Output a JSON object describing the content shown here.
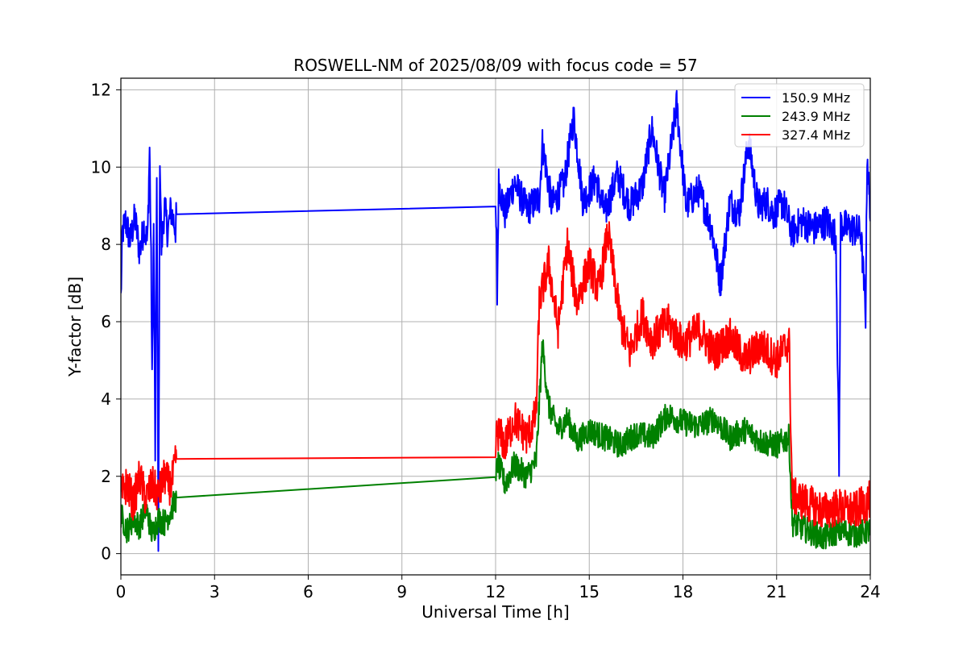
{
  "chart_data": {
    "type": "line",
    "title": "ROSWELL-NM of 2025/08/09 with focus code = 57",
    "xlabel": "Universal Time [h]",
    "ylabel": "Y-factor [dB]",
    "xlim": [
      0,
      24
    ],
    "ylim": [
      -0.55,
      12.3
    ],
    "xticks": [
      0,
      3,
      6,
      9,
      12,
      15,
      18,
      21,
      24
    ],
    "yticks": [
      0,
      2,
      4,
      6,
      8,
      10,
      12
    ],
    "grid": true,
    "legend_position": "top-right",
    "series": [
      {
        "name": "150.9 MHz",
        "color": "#0000ff",
        "points": [
          [
            0,
            6.6
          ],
          [
            0.05,
            8.3
          ],
          [
            0.15,
            8.6
          ],
          [
            0.3,
            8.1
          ],
          [
            0.45,
            8.7
          ],
          [
            0.6,
            7.8
          ],
          [
            0.75,
            8.5
          ],
          [
            0.85,
            8.0
          ],
          [
            0.92,
            10.5
          ],
          [
            0.97,
            7.5
          ],
          [
            1.0,
            4.4
          ],
          [
            1.05,
            8.4
          ],
          [
            1.1,
            2.6
          ],
          [
            1.15,
            10.0
          ],
          [
            1.2,
            0.0
          ],
          [
            1.25,
            10.4
          ],
          [
            1.3,
            7.9
          ],
          [
            1.4,
            9.0
          ],
          [
            1.5,
            8.3
          ],
          [
            1.6,
            8.9
          ],
          [
            1.75,
            8.4
          ],
          [
            1.78,
            8.78
          ],
          [
            12.0,
            8.8
          ],
          [
            12.03,
            8.1
          ],
          [
            12.05,
            6.6
          ],
          [
            12.1,
            9.6
          ],
          [
            12.3,
            8.8
          ],
          [
            12.6,
            9.6
          ],
          [
            13.0,
            8.9
          ],
          [
            13.4,
            9.2
          ],
          [
            13.5,
            10.6
          ],
          [
            13.8,
            9.0
          ],
          [
            14.2,
            9.6
          ],
          [
            14.5,
            11.3
          ],
          [
            14.8,
            9.1
          ],
          [
            15.2,
            9.7
          ],
          [
            15.5,
            8.8
          ],
          [
            15.9,
            9.8
          ],
          [
            16.3,
            9.0
          ],
          [
            16.7,
            9.5
          ],
          [
            17.0,
            11.0
          ],
          [
            17.4,
            9.2
          ],
          [
            17.8,
            11.6
          ],
          [
            18.1,
            9.0
          ],
          [
            18.5,
            9.4
          ],
          [
            18.9,
            8.5
          ],
          [
            19.2,
            7.0
          ],
          [
            19.5,
            9.1
          ],
          [
            19.8,
            8.8
          ],
          [
            20.1,
            10.7
          ],
          [
            20.4,
            9.0
          ],
          [
            20.7,
            9.1
          ],
          [
            20.9,
            8.8
          ],
          [
            21.2,
            9.1
          ],
          [
            21.5,
            8.3
          ],
          [
            21.8,
            8.6
          ],
          [
            22.2,
            8.4
          ],
          [
            22.6,
            8.6
          ],
          [
            22.9,
            8.2
          ],
          [
            23.0,
            2.2
          ],
          [
            23.05,
            8.5
          ],
          [
            23.4,
            8.4
          ],
          [
            23.7,
            8.3
          ],
          [
            23.85,
            6.2
          ],
          [
            23.9,
            10.4
          ],
          [
            24.0,
            8.6
          ]
        ]
      },
      {
        "name": "243.9 MHz",
        "color": "#008000",
        "points": [
          [
            0,
            1.0
          ],
          [
            0.2,
            0.6
          ],
          [
            0.4,
            0.9
          ],
          [
            0.6,
            0.7
          ],
          [
            0.8,
            1.2
          ],
          [
            1.0,
            0.5
          ],
          [
            1.2,
            0.9
          ],
          [
            1.4,
            0.8
          ],
          [
            1.6,
            1.1
          ],
          [
            1.78,
            1.45
          ],
          [
            12.0,
            1.68
          ],
          [
            12.05,
            2.4
          ],
          [
            12.3,
            1.8
          ],
          [
            12.6,
            2.3
          ],
          [
            13.0,
            2.0
          ],
          [
            13.3,
            2.4
          ],
          [
            13.5,
            5.4
          ],
          [
            13.7,
            3.8
          ],
          [
            14.0,
            3.2
          ],
          [
            14.3,
            3.5
          ],
          [
            14.6,
            2.9
          ],
          [
            15.0,
            3.2
          ],
          [
            15.5,
            3.0
          ],
          [
            16.0,
            2.8
          ],
          [
            16.5,
            3.1
          ],
          [
            17.0,
            3.0
          ],
          [
            17.5,
            3.6
          ],
          [
            18.0,
            3.4
          ],
          [
            18.5,
            3.3
          ],
          [
            19.0,
            3.5
          ],
          [
            19.5,
            3.0
          ],
          [
            20.0,
            3.2
          ],
          [
            20.5,
            2.9
          ],
          [
            21.0,
            2.8
          ],
          [
            21.4,
            3.0
          ],
          [
            21.5,
            0.8
          ],
          [
            22.0,
            0.6
          ],
          [
            22.5,
            0.4
          ],
          [
            23.0,
            0.6
          ],
          [
            23.5,
            0.5
          ],
          [
            24.0,
            0.6
          ]
        ]
      },
      {
        "name": "327.4 MHz",
        "color": "#ff0000",
        "points": [
          [
            0,
            1.5
          ],
          [
            0.2,
            1.8
          ],
          [
            0.4,
            1.3
          ],
          [
            0.6,
            2.0
          ],
          [
            0.8,
            1.4
          ],
          [
            1.0,
            1.8
          ],
          [
            1.2,
            1.5
          ],
          [
            1.4,
            2.0
          ],
          [
            1.6,
            1.7
          ],
          [
            1.78,
            2.45
          ],
          [
            12.0,
            2.68
          ],
          [
            12.05,
            3.2
          ],
          [
            12.3,
            2.8
          ],
          [
            12.6,
            3.5
          ],
          [
            13.0,
            3.0
          ],
          [
            13.3,
            3.6
          ],
          [
            13.4,
            6.5
          ],
          [
            13.7,
            7.5
          ],
          [
            14.0,
            5.8
          ],
          [
            14.3,
            8.0
          ],
          [
            14.6,
            6.5
          ],
          [
            15.0,
            7.5
          ],
          [
            15.3,
            6.8
          ],
          [
            15.6,
            8.3
          ],
          [
            16.0,
            6.0
          ],
          [
            16.3,
            5.2
          ],
          [
            16.7,
            6.2
          ],
          [
            17.0,
            5.5
          ],
          [
            17.5,
            6.0
          ],
          [
            18.0,
            5.4
          ],
          [
            18.5,
            5.8
          ],
          [
            19.0,
            5.2
          ],
          [
            19.5,
            5.6
          ],
          [
            20.0,
            5.0
          ],
          [
            20.5,
            5.4
          ],
          [
            21.0,
            5.0
          ],
          [
            21.4,
            5.5
          ],
          [
            21.5,
            1.5
          ],
          [
            22.0,
            1.3
          ],
          [
            22.5,
            1.1
          ],
          [
            23.0,
            1.2
          ],
          [
            23.5,
            1.1
          ],
          [
            24.0,
            1.4
          ]
        ]
      }
    ]
  }
}
